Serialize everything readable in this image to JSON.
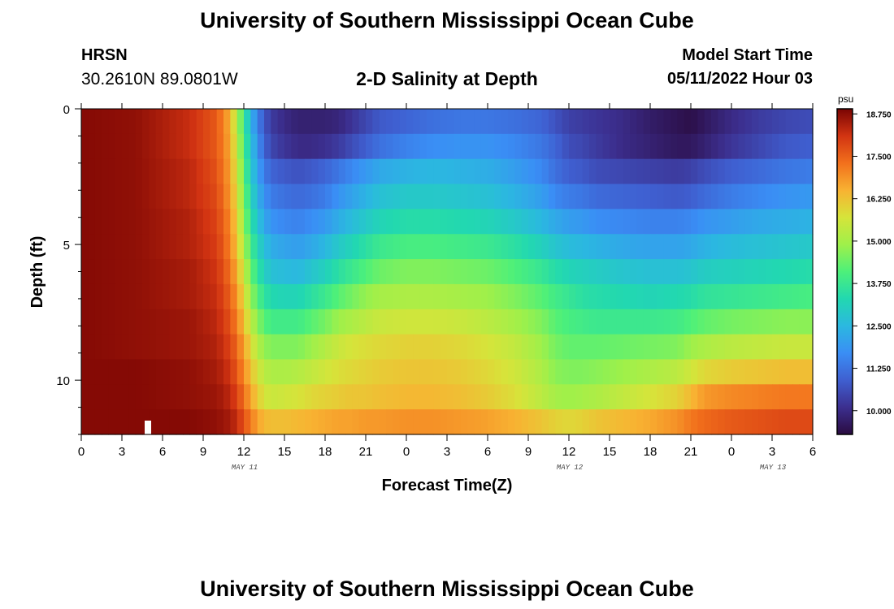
{
  "header": {
    "title": "University of Southern Mississippi Ocean Cube",
    "station": "HRSN",
    "coordinates": "30.2610N  89.0801W",
    "subtitle": "2-D Salinity at Depth",
    "model_start_label": "Model Start Time",
    "model_start_value": "05/11/2022 Hour 03"
  },
  "footer": {
    "title": "University of Southern Mississippi Ocean Cube"
  },
  "colors": {
    "scale": [
      "#2a0b40",
      "#3c2f8f",
      "#3f5fd0",
      "#3a8ef5",
      "#2bb8e0",
      "#22d8b0",
      "#4df07a",
      "#9ff04a",
      "#d6e43a",
      "#f8b232",
      "#f2701c",
      "#d23412",
      "#7a0403"
    ]
  },
  "chart_data": {
    "type": "heatmap",
    "xlabel": "Forecast Time(Z)",
    "ylabel": "Depth (ft)",
    "x_tick_labels": [
      "0",
      "3",
      "6",
      "9",
      "12",
      "15",
      "18",
      "21",
      "0",
      "3",
      "6",
      "9",
      "12",
      "15",
      "18",
      "21",
      "0",
      "3",
      "6"
    ],
    "x_range_hours": [
      0,
      54
    ],
    "date_labels": [
      {
        "text": "MAY 11",
        "hour": 12
      },
      {
        "text": "MAY 12",
        "hour": 36
      },
      {
        "text": "MAY 13",
        "hour": 51
      }
    ],
    "y_tick_labels": [
      "0",
      "5",
      "10"
    ],
    "y_tick_values": [
      0,
      5,
      10
    ],
    "y_range_ft": [
      0,
      12
    ],
    "colorbar": {
      "unit": "psu",
      "tick_labels": [
        "18.750",
        "17.500",
        "16.250",
        "15.000",
        "13.750",
        "12.500",
        "11.250",
        "10.000"
      ],
      "tick_values": [
        18.75,
        17.5,
        16.25,
        15.0,
        13.75,
        12.5,
        11.25,
        10.0
      ],
      "range": [
        9.3,
        18.9
      ]
    },
    "value_hours": [
      0,
      4,
      8,
      10,
      11,
      11.5,
      12,
      12.5,
      13,
      13.5,
      14,
      15,
      16,
      17,
      18,
      19,
      20,
      21,
      22,
      24,
      26,
      28,
      30,
      32,
      34,
      35,
      36,
      37,
      38,
      40,
      42,
      44,
      45,
      46,
      48,
      50,
      52,
      54
    ],
    "value_depths_ft": [
      0,
      1,
      2,
      3,
      4,
      5,
      6,
      7,
      8,
      9,
      10,
      11,
      12
    ],
    "values": [
      [
        18.8,
        18.7,
        18.2,
        17.6,
        16.5,
        15.2,
        13.8,
        12.5,
        11.5,
        10.8,
        10.3,
        10.0,
        9.8,
        9.8,
        9.8,
        9.9,
        10.2,
        10.5,
        10.8,
        11.0,
        11.2,
        11.3,
        11.3,
        11.2,
        11.0,
        10.7,
        10.4,
        10.3,
        10.2,
        10.0,
        9.7,
        9.5,
        9.4,
        9.6,
        10.0,
        10.3,
        10.5,
        10.6
      ],
      [
        18.8,
        18.7,
        18.2,
        17.6,
        16.6,
        15.4,
        14.0,
        12.8,
        11.8,
        11.0,
        10.5,
        10.2,
        10.0,
        10.0,
        10.1,
        10.3,
        10.6,
        10.9,
        11.2,
        11.5,
        11.7,
        11.8,
        11.8,
        11.6,
        11.3,
        11.0,
        10.6,
        10.5,
        10.3,
        10.0,
        9.8,
        9.6,
        9.6,
        9.8,
        10.2,
        10.5,
        10.8,
        10.9
      ],
      [
        18.8,
        18.7,
        18.3,
        17.7,
        16.7,
        15.6,
        14.2,
        13.0,
        12.1,
        11.4,
        11.0,
        10.8,
        10.7,
        10.8,
        11.0,
        11.3,
        11.6,
        11.9,
        12.2,
        12.4,
        12.5,
        12.4,
        12.3,
        12.0,
        11.6,
        11.2,
        10.9,
        10.8,
        10.6,
        10.5,
        10.4,
        10.3,
        10.4,
        10.6,
        10.9,
        11.1,
        11.3,
        11.4
      ],
      [
        18.8,
        18.7,
        18.3,
        17.8,
        16.8,
        15.8,
        14.5,
        13.3,
        12.4,
        11.8,
        11.4,
        11.2,
        11.1,
        11.2,
        11.4,
        11.8,
        12.1,
        12.4,
        12.7,
        12.9,
        12.9,
        12.8,
        12.7,
        12.4,
        12.0,
        11.6,
        11.4,
        11.3,
        11.1,
        11.0,
        10.9,
        10.8,
        10.9,
        11.1,
        11.4,
        11.6,
        11.8,
        11.9
      ],
      [
        18.8,
        18.7,
        18.4,
        17.9,
        17.0,
        16.0,
        14.8,
        13.6,
        12.8,
        12.2,
        11.8,
        11.6,
        11.5,
        11.7,
        11.9,
        12.3,
        12.6,
        12.9,
        13.2,
        13.4,
        13.4,
        13.3,
        13.2,
        12.9,
        12.5,
        12.2,
        12.0,
        11.9,
        11.7,
        11.6,
        11.5,
        11.5,
        11.6,
        11.8,
        12.0,
        12.2,
        12.3,
        12.4
      ],
      [
        18.8,
        18.7,
        18.4,
        18.0,
        17.1,
        16.2,
        15.1,
        14.0,
        13.2,
        12.7,
        12.3,
        12.1,
        12.0,
        12.2,
        12.5,
        12.9,
        13.2,
        13.5,
        13.8,
        14.0,
        14.0,
        13.9,
        13.8,
        13.5,
        13.1,
        12.8,
        12.6,
        12.5,
        12.4,
        12.2,
        12.1,
        12.1,
        12.2,
        12.4,
        12.6,
        12.7,
        12.8,
        12.9
      ],
      [
        18.8,
        18.7,
        18.5,
        18.1,
        17.3,
        16.5,
        15.5,
        14.4,
        13.6,
        13.1,
        12.7,
        12.6,
        12.5,
        12.8,
        13.1,
        13.5,
        13.8,
        14.1,
        14.4,
        14.6,
        14.6,
        14.5,
        14.4,
        14.1,
        13.7,
        13.4,
        13.2,
        13.1,
        13.0,
        12.8,
        12.7,
        12.7,
        12.8,
        13.0,
        13.1,
        13.2,
        13.3,
        13.4
      ],
      [
        18.8,
        18.7,
        18.5,
        18.2,
        17.5,
        16.8,
        15.9,
        14.9,
        14.1,
        13.6,
        13.3,
        13.2,
        13.2,
        13.5,
        13.8,
        14.2,
        14.5,
        14.8,
        15.0,
        15.1,
        15.1,
        15.0,
        14.9,
        14.6,
        14.2,
        13.9,
        13.7,
        13.5,
        13.4,
        13.3,
        13.2,
        13.3,
        13.4,
        13.6,
        13.7,
        13.8,
        13.9,
        14.0
      ],
      [
        18.8,
        18.7,
        18.6,
        18.3,
        17.7,
        17.1,
        16.3,
        15.4,
        14.7,
        14.2,
        13.9,
        13.9,
        13.9,
        14.2,
        14.5,
        14.9,
        15.1,
        15.3,
        15.5,
        15.6,
        15.6,
        15.5,
        15.3,
        15.0,
        14.6,
        14.2,
        14.0,
        13.9,
        13.8,
        13.8,
        13.8,
        13.9,
        14.1,
        14.3,
        14.5,
        14.6,
        14.7,
        14.7
      ],
      [
        18.8,
        18.7,
        18.6,
        18.4,
        17.9,
        17.4,
        16.7,
        15.9,
        15.2,
        14.8,
        14.6,
        14.6,
        14.6,
        14.9,
        15.2,
        15.5,
        15.7,
        15.8,
        15.9,
        16.0,
        16.0,
        15.9,
        15.7,
        15.4,
        14.9,
        14.5,
        14.3,
        14.3,
        14.3,
        14.4,
        14.5,
        14.6,
        14.9,
        15.1,
        15.3,
        15.4,
        15.5,
        15.5
      ],
      [
        18.8,
        18.8,
        18.7,
        18.5,
        18.1,
        17.6,
        17.0,
        16.3,
        15.7,
        15.3,
        15.1,
        15.1,
        15.2,
        15.4,
        15.6,
        15.8,
        15.9,
        16.0,
        16.1,
        16.2,
        16.2,
        16.1,
        15.9,
        15.6,
        15.1,
        14.7,
        14.6,
        14.6,
        14.7,
        14.9,
        15.1,
        15.3,
        15.6,
        15.9,
        16.1,
        16.2,
        16.3,
        16.3
      ],
      [
        18.8,
        18.8,
        18.7,
        18.6,
        18.3,
        17.9,
        17.3,
        16.7,
        16.1,
        15.7,
        15.5,
        15.6,
        15.7,
        15.9,
        16.0,
        16.1,
        16.2,
        16.2,
        16.3,
        16.4,
        16.4,
        16.3,
        16.1,
        15.8,
        15.3,
        15.0,
        14.9,
        15.0,
        15.1,
        15.4,
        15.7,
        16.0,
        16.4,
        16.8,
        17.0,
        17.1,
        17.2,
        17.2
      ],
      [
        18.8,
        18.8,
        18.8,
        18.7,
        18.5,
        18.2,
        17.7,
        17.2,
        16.7,
        16.4,
        16.3,
        16.3,
        16.4,
        16.5,
        16.6,
        16.7,
        16.7,
        16.8,
        16.8,
        16.9,
        16.9,
        16.8,
        16.7,
        16.5,
        16.2,
        16.0,
        15.9,
        16.0,
        16.2,
        16.4,
        16.6,
        16.9,
        17.2,
        17.4,
        17.6,
        17.7,
        17.8,
        17.8
      ]
    ]
  }
}
